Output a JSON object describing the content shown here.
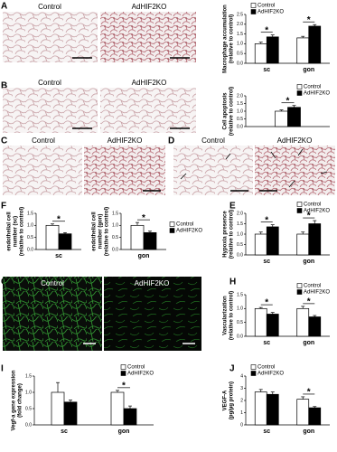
{
  "panel_labels": [
    "A",
    "B",
    "C",
    "D",
    "E",
    "F",
    "G",
    "H",
    "I",
    "J"
  ],
  "micrographs": [
    {
      "labels": [
        "Control",
        "AdHIF2KO"
      ]
    },
    {
      "labels": [
        "Control",
        "AdHIF2KO"
      ]
    },
    {
      "labels": [
        "Control",
        "AdHIF2KO"
      ]
    },
    {
      "labels": [
        "Control",
        "AdHIF2KO"
      ]
    },
    {
      "labels": [
        "Control",
        "AdHIF2KO"
      ]
    }
  ],
  "chart_data": [
    {
      "type": "bar",
      "ylabel": [
        "Macrophage accumulation",
        "(relative to control)"
      ],
      "categories": [
        "sc",
        "gon"
      ],
      "series": [
        {
          "name": "Control",
          "color": "#ffffff",
          "values": [
            1.0,
            1.3
          ],
          "errors": [
            0.08,
            0.08
          ]
        },
        {
          "name": "AdHIF2KO",
          "color": "#000000",
          "values": [
            1.35,
            1.9
          ],
          "errors": [
            0.1,
            0.08
          ]
        }
      ],
      "annotations": [
        "*",
        "*"
      ],
      "legend": "upper left",
      "ylim": [
        0,
        2.5
      ],
      "yticks": [
        {
          "value": 0,
          "label": "0.0"
        },
        {
          "value": 0.5,
          "label": "0.5"
        },
        {
          "value": 1,
          "label": "1.0"
        },
        {
          "value": 1.5,
          "label": "1.5"
        },
        {
          "value": 2,
          "label": "2.0"
        },
        {
          "value": 2.5,
          "label": "2.5"
        }
      ]
    },
    {
      "type": "bar",
      "ylabel": [
        "Cell apoptosis",
        "(relative to control)"
      ],
      "categories": [
        null
      ],
      "series": [
        {
          "name": "Control",
          "color": "#ffffff",
          "values": [
            1.0
          ],
          "errors": [
            0.08
          ]
        },
        {
          "name": "AdHIF2KO",
          "color": "#000000",
          "values": [
            1.25
          ],
          "errors": [
            0.12
          ]
        }
      ],
      "annotations": [
        "*"
      ],
      "legend": "upper right",
      "ylim": [
        0,
        2
      ],
      "yticks": [
        {
          "value": 0,
          "label": "0.0"
        },
        {
          "value": 0.5,
          "label": "0.5"
        },
        {
          "value": 1,
          "label": "1.0"
        },
        {
          "value": 1.5,
          "label": "1.5"
        },
        {
          "value": 2,
          "label": "2.0"
        }
      ]
    },
    {
      "type": "bar",
      "ylabel": [
        "endothelial cell",
        "number (sc)",
        "(relative to control)"
      ],
      "categories": [
        "sc"
      ],
      "series": [
        {
          "color": "#ffffff",
          "values": [
            1.0
          ],
          "errors": [
            0.06
          ]
        },
        {
          "color": "#000000",
          "values": [
            0.65
          ],
          "errors": [
            0.05
          ]
        }
      ],
      "annotations": [
        "*"
      ],
      "legend": "none",
      "ylim": [
        0,
        1.5
      ],
      "yticks": [
        {
          "value": 0,
          "label": "0.0"
        },
        {
          "value": 0.5,
          "label": "0.5"
        },
        {
          "value": 1,
          "label": "1.0"
        },
        {
          "value": 1.5,
          "label": "1.5"
        }
      ]
    },
    {
      "type": "bar",
      "ylabel": [
        "endothelial cell",
        "number (gon)",
        "(relative to control)"
      ],
      "categories": [
        "gon"
      ],
      "series": [
        {
          "name": "Control",
          "color": "#ffffff",
          "values": [
            1.0
          ],
          "errors": [
            0.12
          ]
        },
        {
          "name": "AdHIF2KO",
          "color": "#000000",
          "values": [
            0.7
          ],
          "errors": [
            0.06
          ]
        }
      ],
      "annotations": [
        "*"
      ],
      "legend": "outside right",
      "ylim": [
        0,
        1.5
      ],
      "yticks": [
        {
          "value": 0,
          "label": "0.0"
        },
        {
          "value": 0.5,
          "label": "0.5"
        },
        {
          "value": 1,
          "label": "1.0"
        },
        {
          "value": 1.5,
          "label": "1.5"
        }
      ]
    },
    {
      "type": "bar",
      "ylabel": [
        "Hypoxia presence",
        "(relative to control)"
      ],
      "categories": [
        "sc",
        "gon"
      ],
      "series": [
        {
          "name": "Control",
          "color": "#ffffff",
          "values": [
            1.0,
            1.0
          ],
          "errors": [
            0.1,
            0.1
          ]
        },
        {
          "name": "AdHIF2KO",
          "color": "#000000",
          "values": [
            1.35,
            1.5
          ],
          "errors": [
            0.1,
            0.15
          ]
        }
      ],
      "annotations": [
        "*",
        "*"
      ],
      "legend": "upper right",
      "ylim": [
        0,
        2
      ],
      "yticks": [
        {
          "value": 0,
          "label": "0.0"
        },
        {
          "value": 0.5,
          "label": "0.5"
        },
        {
          "value": 1,
          "label": "1.0"
        },
        {
          "value": 1.5,
          "label": "1.5"
        },
        {
          "value": 2,
          "label": "2.0"
        }
      ]
    },
    {
      "type": "bar",
      "ylabel": [
        "Vascularization",
        "(relative to control)"
      ],
      "categories": [
        "sc",
        "gon"
      ],
      "series": [
        {
          "name": "Control",
          "color": "#ffffff",
          "values": [
            1.0,
            1.0
          ],
          "errors": [
            0.04,
            0.08
          ]
        },
        {
          "name": "AdHIF2KO",
          "color": "#000000",
          "values": [
            0.8,
            0.7
          ],
          "errors": [
            0.06,
            0.05
          ]
        }
      ],
      "annotations": [
        "*",
        "*"
      ],
      "legend": "upper right",
      "ylim": [
        0,
        1.5
      ],
      "yticks": [
        {
          "value": 0,
          "label": "0.0"
        },
        {
          "value": 0.5,
          "label": "0.5"
        },
        {
          "value": 1,
          "label": "1.0"
        },
        {
          "value": 1.5,
          "label": "1.5"
        }
      ]
    },
    {
      "type": "bar",
      "ylabel": [
        "Vegf-a gene expression",
        "(fold change)"
      ],
      "categories": [
        "sc",
        "gon"
      ],
      "series": [
        {
          "name": "Control",
          "color": "#ffffff",
          "values": [
            1.0,
            1.0
          ],
          "errors": [
            0.3,
            0.06
          ]
        },
        {
          "name": "AdHIF2KO",
          "color": "#000000",
          "values": [
            0.7,
            0.5
          ],
          "errors": [
            0.06,
            0.08
          ]
        }
      ],
      "annotations": [
        null,
        "*"
      ],
      "legend": "upper right",
      "ylim": [
        0,
        1.5
      ],
      "yticks": [
        {
          "value": 0,
          "label": "0.0"
        },
        {
          "value": 0.5,
          "label": "0.5"
        },
        {
          "value": 1,
          "label": "1.0"
        },
        {
          "value": 1.5,
          "label": "1.5"
        }
      ]
    },
    {
      "type": "bar",
      "ylabel": [
        "VEGF-A",
        "(pg/µg protein)"
      ],
      "categories": [
        "sc",
        "gon"
      ],
      "series": [
        {
          "name": "Control",
          "color": "#ffffff",
          "values": [
            2.7,
            2.1
          ],
          "errors": [
            0.2,
            0.2
          ]
        },
        {
          "name": "AdHIF2KO",
          "color": "#000000",
          "values": [
            2.5,
            1.4
          ],
          "errors": [
            0.2,
            0.1
          ]
        }
      ],
      "annotations": [
        null,
        "*"
      ],
      "legend": "upper left",
      "ylim": [
        0,
        4
      ],
      "yticks": [
        0,
        1,
        2,
        3,
        4
      ]
    }
  ]
}
